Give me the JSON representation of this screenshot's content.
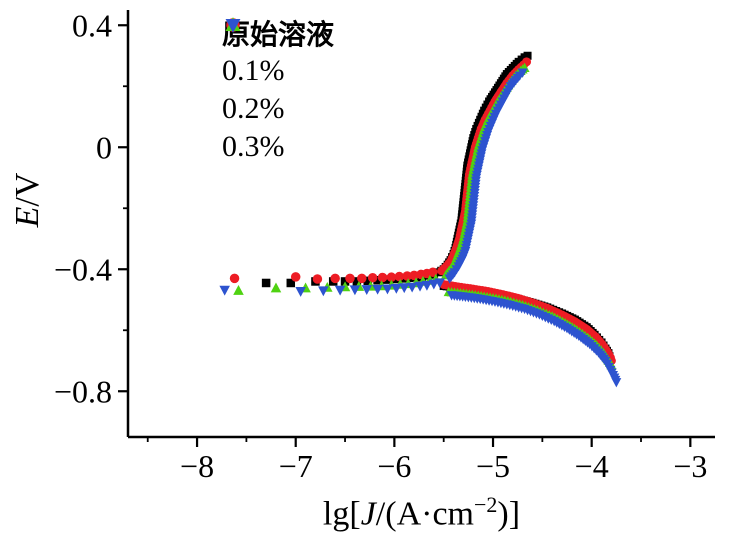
{
  "figure": {
    "background": "#ffffff"
  },
  "chart_data": {
    "type": "scatter",
    "title": "",
    "xlabel": "lg[J/(A·cm−2)]",
    "ylabel": "E/V",
    "xlabel_parts": {
      "pre": "lg[",
      "J": "J",
      "mid": "/(A·cm",
      "sup": "−2",
      "post": ")]"
    },
    "ylabel_parts": {
      "E": "E",
      "unit": "/V"
    },
    "xlim": [
      -8.7,
      -2.75
    ],
    "ylim": [
      -0.95,
      0.45
    ],
    "xticks": [
      -8,
      -7,
      -6,
      -5,
      -4,
      -3
    ],
    "xtick_labels": [
      "−8",
      "−7",
      "−6",
      "−5",
      "−4",
      "−3"
    ],
    "xticks_minor": [
      -8.5,
      -7.5,
      -6.5,
      -5.5,
      -4.5,
      -3.5
    ],
    "yticks": [
      0.4,
      0,
      -0.4,
      -0.8
    ],
    "ytick_labels": [
      "0.4",
      "0",
      "−0.4",
      "−0.8"
    ],
    "yticks_minor": [
      0.2,
      -0.2,
      -0.6
    ],
    "axis_color": "#000000",
    "legend": {
      "position": "top-left-inside",
      "items": [
        "原始溶液",
        "0.1%",
        "0.2%",
        "0.3%"
      ]
    },
    "series": [
      {
        "id": "original-solution",
        "name": "原始溶液",
        "color": "#000000",
        "marker": "square",
        "scatter": [
          [
            -7.3,
            -0.445
          ],
          [
            -7.05,
            -0.445
          ],
          [
            -6.8,
            -0.44
          ],
          [
            -6.62,
            -0.44
          ],
          [
            -6.5,
            -0.44
          ],
          [
            -6.38,
            -0.44
          ],
          [
            -6.27,
            -0.438
          ],
          [
            -6.17,
            -0.436
          ],
          [
            -6.08,
            -0.434
          ],
          [
            -6.0,
            -0.432
          ],
          [
            -5.92,
            -0.43
          ],
          [
            -5.85,
            -0.428
          ],
          [
            -5.78,
            -0.426
          ],
          [
            -5.72,
            -0.424
          ],
          [
            -5.66,
            -0.42
          ],
          [
            -5.6,
            -0.417
          ]
        ],
        "anodic": [
          [
            -5.55,
            -0.41
          ],
          [
            -5.5,
            -0.4
          ],
          [
            -5.46,
            -0.385
          ],
          [
            -5.43,
            -0.37
          ],
          [
            -5.4,
            -0.35
          ],
          [
            -5.38,
            -0.33
          ],
          [
            -5.36,
            -0.3
          ],
          [
            -5.34,
            -0.27
          ],
          [
            -5.32,
            -0.24
          ],
          [
            -5.31,
            -0.21
          ],
          [
            -5.3,
            -0.18
          ],
          [
            -5.29,
            -0.15
          ],
          [
            -5.28,
            -0.12
          ],
          [
            -5.27,
            -0.09
          ],
          [
            -5.26,
            -0.06
          ],
          [
            -5.24,
            -0.03
          ],
          [
            -5.22,
            0.0
          ],
          [
            -5.2,
            0.03
          ],
          [
            -5.17,
            0.06
          ],
          [
            -5.13,
            0.09
          ],
          [
            -5.09,
            0.12
          ],
          [
            -5.04,
            0.15
          ],
          [
            -4.98,
            0.18
          ],
          [
            -4.92,
            0.21
          ],
          [
            -4.86,
            0.24
          ],
          [
            -4.8,
            0.26
          ],
          [
            -4.74,
            0.28
          ],
          [
            -4.68,
            0.295
          ],
          [
            -4.65,
            0.3
          ]
        ],
        "cathodic": [
          [
            -5.5,
            -0.455
          ],
          [
            -5.35,
            -0.46
          ],
          [
            -5.2,
            -0.468
          ],
          [
            -5.05,
            -0.476
          ],
          [
            -4.9,
            -0.486
          ],
          [
            -4.75,
            -0.497
          ],
          [
            -4.6,
            -0.51
          ],
          [
            -4.45,
            -0.525
          ],
          [
            -4.3,
            -0.545
          ],
          [
            -4.17,
            -0.565
          ],
          [
            -4.05,
            -0.59
          ],
          [
            -3.97,
            -0.615
          ],
          [
            -3.9,
            -0.64
          ],
          [
            -3.86,
            -0.66
          ],
          [
            -3.83,
            -0.675
          ],
          [
            -3.82,
            -0.685
          ]
        ]
      },
      {
        "id": "0.1-percent",
        "name": "0.1%",
        "color": "#ed1c24",
        "marker": "circle",
        "scatter": [
          [
            -7.62,
            -0.43
          ],
          [
            -7.0,
            -0.425
          ],
          [
            -6.78,
            -0.432
          ],
          [
            -6.6,
            -0.43
          ],
          [
            -6.45,
            -0.43
          ],
          [
            -6.33,
            -0.43
          ],
          [
            -6.22,
            -0.428
          ],
          [
            -6.12,
            -0.427
          ],
          [
            -6.03,
            -0.426
          ],
          [
            -5.95,
            -0.424
          ],
          [
            -5.87,
            -0.422
          ],
          [
            -5.8,
            -0.42
          ],
          [
            -5.73,
            -0.417
          ],
          [
            -5.67,
            -0.414
          ],
          [
            -5.61,
            -0.41
          ]
        ],
        "anodic": [
          [
            -5.52,
            -0.405
          ],
          [
            -5.47,
            -0.39
          ],
          [
            -5.43,
            -0.375
          ],
          [
            -5.4,
            -0.355
          ],
          [
            -5.37,
            -0.33
          ],
          [
            -5.34,
            -0.3
          ],
          [
            -5.32,
            -0.27
          ],
          [
            -5.3,
            -0.24
          ],
          [
            -5.28,
            -0.21
          ],
          [
            -5.27,
            -0.18
          ],
          [
            -5.26,
            -0.15
          ],
          [
            -5.25,
            -0.12
          ],
          [
            -5.24,
            -0.09
          ],
          [
            -5.22,
            -0.06
          ],
          [
            -5.2,
            -0.03
          ],
          [
            -5.18,
            0.0
          ],
          [
            -5.15,
            0.03
          ],
          [
            -5.12,
            0.06
          ],
          [
            -5.08,
            0.09
          ],
          [
            -5.03,
            0.12
          ],
          [
            -4.98,
            0.15
          ],
          [
            -4.92,
            0.18
          ],
          [
            -4.86,
            0.21
          ],
          [
            -4.8,
            0.235
          ],
          [
            -4.74,
            0.255
          ],
          [
            -4.69,
            0.27
          ],
          [
            -4.66,
            0.28
          ]
        ],
        "cathodic": [
          [
            -5.5,
            -0.45
          ],
          [
            -5.35,
            -0.458
          ],
          [
            -5.2,
            -0.465
          ],
          [
            -5.05,
            -0.473
          ],
          [
            -4.9,
            -0.483
          ],
          [
            -4.75,
            -0.495
          ],
          [
            -4.6,
            -0.51
          ],
          [
            -4.45,
            -0.528
          ],
          [
            -4.3,
            -0.55
          ],
          [
            -4.17,
            -0.572
          ],
          [
            -4.05,
            -0.597
          ],
          [
            -3.96,
            -0.622
          ],
          [
            -3.89,
            -0.648
          ],
          [
            -3.84,
            -0.672
          ],
          [
            -3.81,
            -0.69
          ],
          [
            -3.8,
            -0.7
          ]
        ]
      },
      {
        "id": "0.2-percent",
        "name": "0.2%",
        "color": "#4fd211",
        "marker": "triangle-up",
        "scatter": [
          [
            -7.58,
            -0.47
          ],
          [
            -7.2,
            -0.462
          ],
          [
            -6.9,
            -0.462
          ],
          [
            -6.68,
            -0.46
          ],
          [
            -6.5,
            -0.458
          ],
          [
            -6.36,
            -0.457
          ],
          [
            -6.24,
            -0.456
          ],
          [
            -6.13,
            -0.455
          ],
          [
            -6.03,
            -0.453
          ],
          [
            -5.94,
            -0.45
          ],
          [
            -5.86,
            -0.448
          ],
          [
            -5.78,
            -0.445
          ],
          [
            -5.71,
            -0.44
          ],
          [
            -5.64,
            -0.437
          ],
          [
            -5.58,
            -0.433
          ]
        ],
        "anodic": [
          [
            -5.48,
            -0.42
          ],
          [
            -5.43,
            -0.4
          ],
          [
            -5.39,
            -0.38
          ],
          [
            -5.36,
            -0.355
          ],
          [
            -5.33,
            -0.33
          ],
          [
            -5.3,
            -0.3
          ],
          [
            -5.28,
            -0.27
          ],
          [
            -5.26,
            -0.24
          ],
          [
            -5.25,
            -0.21
          ],
          [
            -5.24,
            -0.18
          ],
          [
            -5.23,
            -0.15
          ],
          [
            -5.22,
            -0.12
          ],
          [
            -5.21,
            -0.09
          ],
          [
            -5.19,
            -0.06
          ],
          [
            -5.17,
            -0.03
          ],
          [
            -5.15,
            0.0
          ],
          [
            -5.12,
            0.03
          ],
          [
            -5.09,
            0.06
          ],
          [
            -5.05,
            0.09
          ],
          [
            -5.0,
            0.12
          ],
          [
            -4.95,
            0.15
          ],
          [
            -4.89,
            0.18
          ],
          [
            -4.83,
            0.21
          ],
          [
            -4.77,
            0.235
          ],
          [
            -4.72,
            0.25
          ],
          [
            -4.68,
            0.26
          ]
        ],
        "cathodic": [
          [
            -5.45,
            -0.475
          ],
          [
            -5.3,
            -0.48
          ],
          [
            -5.15,
            -0.487
          ],
          [
            -5.0,
            -0.495
          ],
          [
            -4.85,
            -0.505
          ],
          [
            -4.7,
            -0.518
          ],
          [
            -4.55,
            -0.535
          ],
          [
            -4.4,
            -0.555
          ],
          [
            -4.27,
            -0.577
          ],
          [
            -4.15,
            -0.6
          ],
          [
            -4.04,
            -0.625
          ],
          [
            -3.95,
            -0.65
          ],
          [
            -3.88,
            -0.675
          ],
          [
            -3.83,
            -0.7
          ],
          [
            -3.8,
            -0.715
          ]
        ]
      },
      {
        "id": "0.3-percent",
        "name": "0.3%",
        "color": "#2d53cf",
        "marker": "triangle-down",
        "scatter": [
          [
            -7.72,
            -0.468
          ],
          [
            -6.95,
            -0.472
          ],
          [
            -6.72,
            -0.47
          ],
          [
            -6.55,
            -0.468
          ],
          [
            -6.4,
            -0.467
          ],
          [
            -6.28,
            -0.466
          ],
          [
            -6.17,
            -0.465
          ],
          [
            -6.07,
            -0.464
          ],
          [
            -5.98,
            -0.462
          ],
          [
            -5.9,
            -0.46
          ],
          [
            -5.82,
            -0.458
          ],
          [
            -5.74,
            -0.455
          ],
          [
            -5.67,
            -0.452
          ],
          [
            -5.6,
            -0.448
          ],
          [
            -5.54,
            -0.444
          ]
        ],
        "anodic": [
          [
            -5.44,
            -0.43
          ],
          [
            -5.39,
            -0.41
          ],
          [
            -5.35,
            -0.39
          ],
          [
            -5.31,
            -0.365
          ],
          [
            -5.28,
            -0.34
          ],
          [
            -5.26,
            -0.31
          ],
          [
            -5.24,
            -0.28
          ],
          [
            -5.22,
            -0.25
          ],
          [
            -5.21,
            -0.22
          ],
          [
            -5.2,
            -0.19
          ],
          [
            -5.19,
            -0.16
          ],
          [
            -5.18,
            -0.13
          ],
          [
            -5.17,
            -0.1
          ],
          [
            -5.15,
            -0.07
          ],
          [
            -5.13,
            -0.04
          ],
          [
            -5.11,
            -0.01
          ],
          [
            -5.08,
            0.02
          ],
          [
            -5.05,
            0.05
          ],
          [
            -5.01,
            0.08
          ],
          [
            -4.97,
            0.11
          ],
          [
            -4.92,
            0.14
          ],
          [
            -4.87,
            0.17
          ],
          [
            -4.82,
            0.2
          ],
          [
            -4.77,
            0.22
          ],
          [
            -4.73,
            0.235
          ],
          [
            -4.7,
            0.245
          ]
        ],
        "cathodic": [
          [
            -5.42,
            -0.485
          ],
          [
            -5.28,
            -0.49
          ],
          [
            -5.13,
            -0.497
          ],
          [
            -4.98,
            -0.506
          ],
          [
            -4.83,
            -0.517
          ],
          [
            -4.68,
            -0.53
          ],
          [
            -4.53,
            -0.548
          ],
          [
            -4.38,
            -0.57
          ],
          [
            -4.25,
            -0.593
          ],
          [
            -4.13,
            -0.618
          ],
          [
            -4.02,
            -0.645
          ],
          [
            -3.93,
            -0.673
          ],
          [
            -3.86,
            -0.7
          ],
          [
            -3.81,
            -0.73
          ],
          [
            -3.77,
            -0.755
          ],
          [
            -3.75,
            -0.77
          ]
        ]
      }
    ]
  }
}
